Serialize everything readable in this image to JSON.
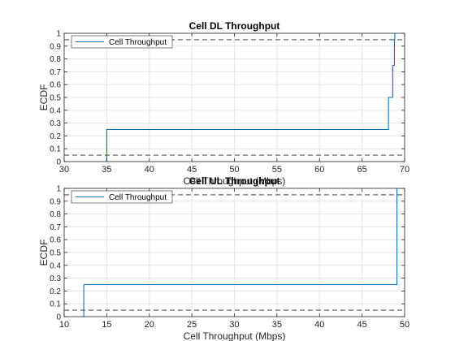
{
  "figure": {
    "background": "#ffffff"
  },
  "chart_data": [
    {
      "type": "line",
      "title": "Cell DL Throughput",
      "xlabel": "Cell Throughput (Mbps)",
      "ylabel": "ECDF",
      "xlim": [
        30,
        70
      ],
      "ylim": [
        0,
        1
      ],
      "xticks": [
        "30",
        "35",
        "40",
        "45",
        "50",
        "55",
        "60",
        "65",
        "70"
      ],
      "yticks": [
        "0",
        "0.1",
        "0.2",
        "0.3",
        "0.4",
        "0.5",
        "0.6",
        "0.7",
        "0.8",
        "0.9",
        "1"
      ],
      "grid": true,
      "legend": {
        "position": "top-left",
        "entries": [
          "Cell Throughput"
        ]
      },
      "series": [
        {
          "name": "Cell Throughput",
          "color": "#0072BD",
          "style": "stairs",
          "x": [
            35.0,
            35.0,
            68.1,
            68.1,
            68.6,
            68.6,
            68.8,
            68.8,
            68.85,
            68.85
          ],
          "y": [
            0.0,
            0.25,
            0.25,
            0.5,
            0.5,
            0.75,
            0.75,
            0.95,
            0.95,
            1.0
          ]
        }
      ],
      "reference_lines": [
        {
          "y": 0.05,
          "color": "#262626",
          "style": "dashed"
        },
        {
          "y": 0.95,
          "color": "#262626",
          "style": "dashed"
        }
      ]
    },
    {
      "type": "line",
      "title": "Cell UL Throughput",
      "xlabel": "Cell Throughput (Mbps)",
      "ylabel": "ECDF",
      "xlim": [
        10,
        50
      ],
      "ylim": [
        0,
        1
      ],
      "xticks": [
        "10",
        "15",
        "20",
        "25",
        "30",
        "35",
        "40",
        "45",
        "50"
      ],
      "yticks": [
        "0",
        "0.1",
        "0.2",
        "0.3",
        "0.4",
        "0.5",
        "0.6",
        "0.7",
        "0.8",
        "0.9",
        "1"
      ],
      "grid": true,
      "legend": {
        "position": "top-left",
        "entries": [
          "Cell Throughput"
        ]
      },
      "series": [
        {
          "name": "Cell Throughput",
          "color": "#0072BD",
          "style": "stairs",
          "x": [
            12.3,
            12.3,
            49.1,
            49.1
          ],
          "y": [
            0.0,
            0.25,
            0.25,
            1.0
          ]
        }
      ],
      "reference_lines": [
        {
          "y": 0.05,
          "color": "#262626",
          "style": "dashed"
        },
        {
          "y": 0.95,
          "color": "#262626",
          "style": "dashed"
        }
      ]
    }
  ]
}
